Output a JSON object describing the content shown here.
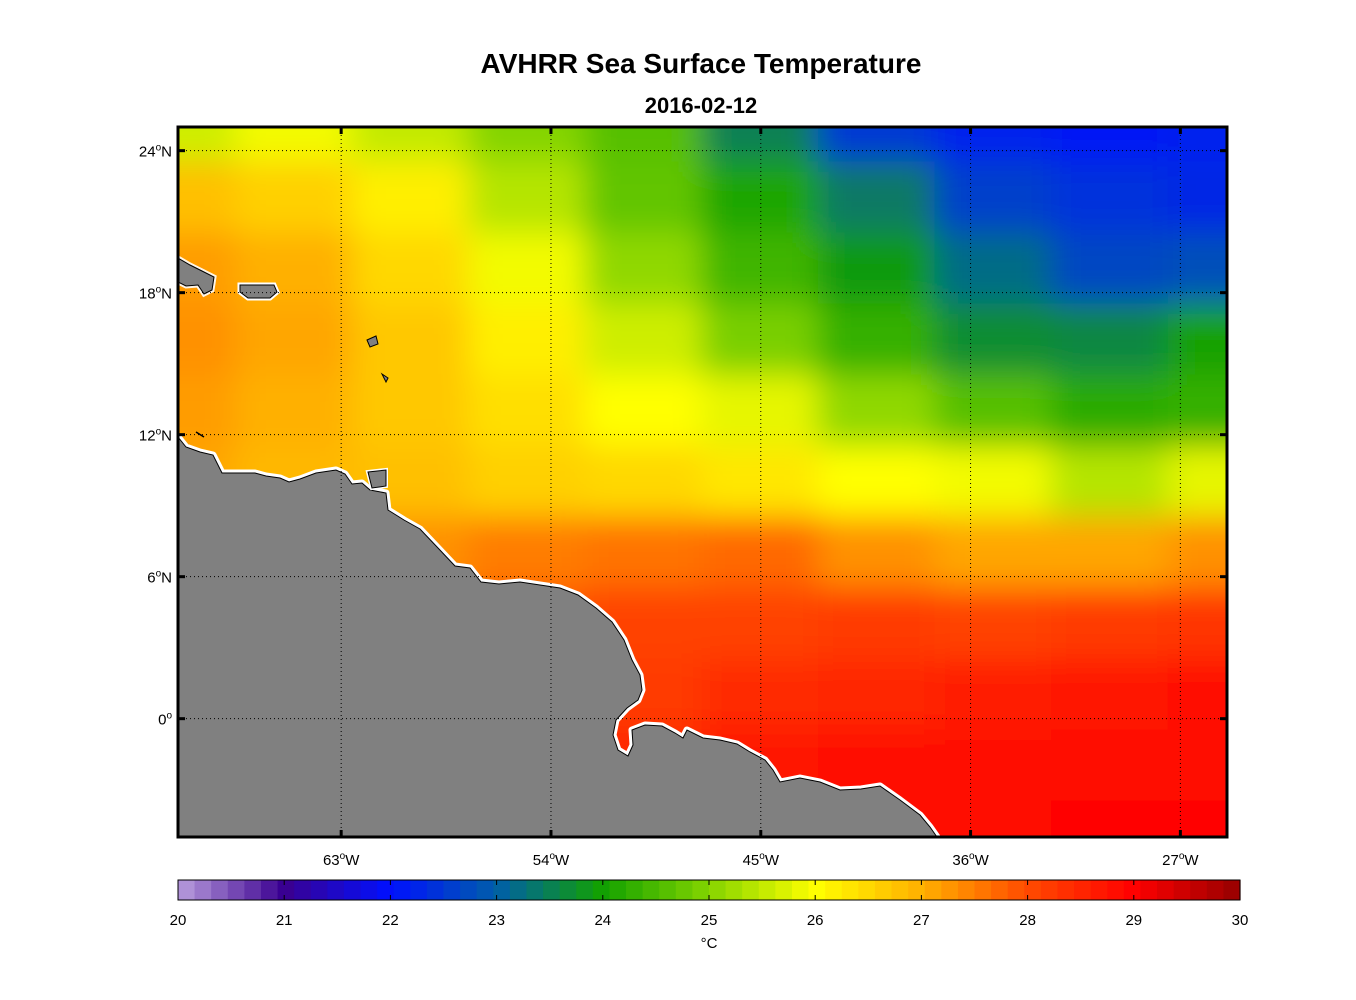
{
  "chart_data": {
    "type": "heatmap",
    "title": "AVHRR Sea Surface Temperature",
    "subtitle": "2016-02-12",
    "map": {
      "lon_range": [
        -70,
        -25
      ],
      "lat_range": [
        -5,
        25
      ],
      "lon_ticks": [
        -63,
        -54,
        -45,
        -36,
        -27
      ],
      "lon_tick_labels": [
        "63",
        "54",
        "45",
        "36",
        "27"
      ],
      "lon_tick_suffix": "W",
      "lat_ticks": [
        24,
        18,
        12,
        6,
        0
      ],
      "lat_tick_labels": [
        "24",
        "18",
        "12",
        "6",
        "0"
      ],
      "lat_tick_suffix": "N",
      "degree_mark": "o",
      "grid": true,
      "land_color": "#808080"
    },
    "field_sst_c": {
      "lats": [
        25,
        22,
        19,
        16,
        13,
        10,
        7,
        4,
        1,
        -2,
        -5
      ],
      "lons": [
        -70,
        -65,
        -60,
        -55,
        -50,
        -45,
        -40,
        -35,
        -30,
        -25
      ],
      "values": [
        [
          25.6,
          25.9,
          25.5,
          25.0,
          24.6,
          23.5,
          22.5,
          22.2,
          22.1,
          22.2
        ],
        [
          26.8,
          26.6,
          26.2,
          25.4,
          24.7,
          24.1,
          23.4,
          22.6,
          22.4,
          22.3
        ],
        [
          27.2,
          27.0,
          26.5,
          25.9,
          25.1,
          24.4,
          23.9,
          23.2,
          22.7,
          22.8
        ],
        [
          27.3,
          27.1,
          26.7,
          26.2,
          25.6,
          24.9,
          24.3,
          23.7,
          23.6,
          24.0
        ],
        [
          27.2,
          27.0,
          26.7,
          26.4,
          26.0,
          25.8,
          25.1,
          24.6,
          24.2,
          24.3
        ],
        [
          27.1,
          26.9,
          26.8,
          26.6,
          26.5,
          26.3,
          26.0,
          25.9,
          25.4,
          25.8
        ],
        [
          27.3,
          27.3,
          27.3,
          27.5,
          27.6,
          27.7,
          27.3,
          27.1,
          27.1,
          27.3
        ],
        [
          27.5,
          27.6,
          27.7,
          27.9,
          28.1,
          28.1,
          28.2,
          28.1,
          28.2,
          28.3
        ],
        [
          27.6,
          27.7,
          27.9,
          28.0,
          28.2,
          28.4,
          28.5,
          28.6,
          28.7,
          28.8
        ],
        [
          27.6,
          27.7,
          27.9,
          28.2,
          28.5,
          28.7,
          28.8,
          28.8,
          28.9,
          28.9
        ],
        [
          27.6,
          27.7,
          27.9,
          28.3,
          28.6,
          28.8,
          28.9,
          28.9,
          29.0,
          29.0
        ]
      ]
    },
    "colorbar": {
      "min": 20,
      "max": 30,
      "ticks": [
        20,
        21,
        22,
        23,
        24,
        25,
        26,
        27,
        28,
        29,
        30
      ],
      "tick_labels": [
        "20",
        "21",
        "22",
        "23",
        "24",
        "25",
        "26",
        "27",
        "28",
        "29",
        "30"
      ],
      "unit_symbol": "°C"
    }
  },
  "colors": {
    "colormap_stops": [
      "#b99ddd",
      "#3a0090",
      "#0010ff",
      "#005fa8",
      "#12a100",
      "#84d400",
      "#ffff00",
      "#ffb000",
      "#ff4a00",
      "#ff0000",
      "#960000"
    ]
  }
}
